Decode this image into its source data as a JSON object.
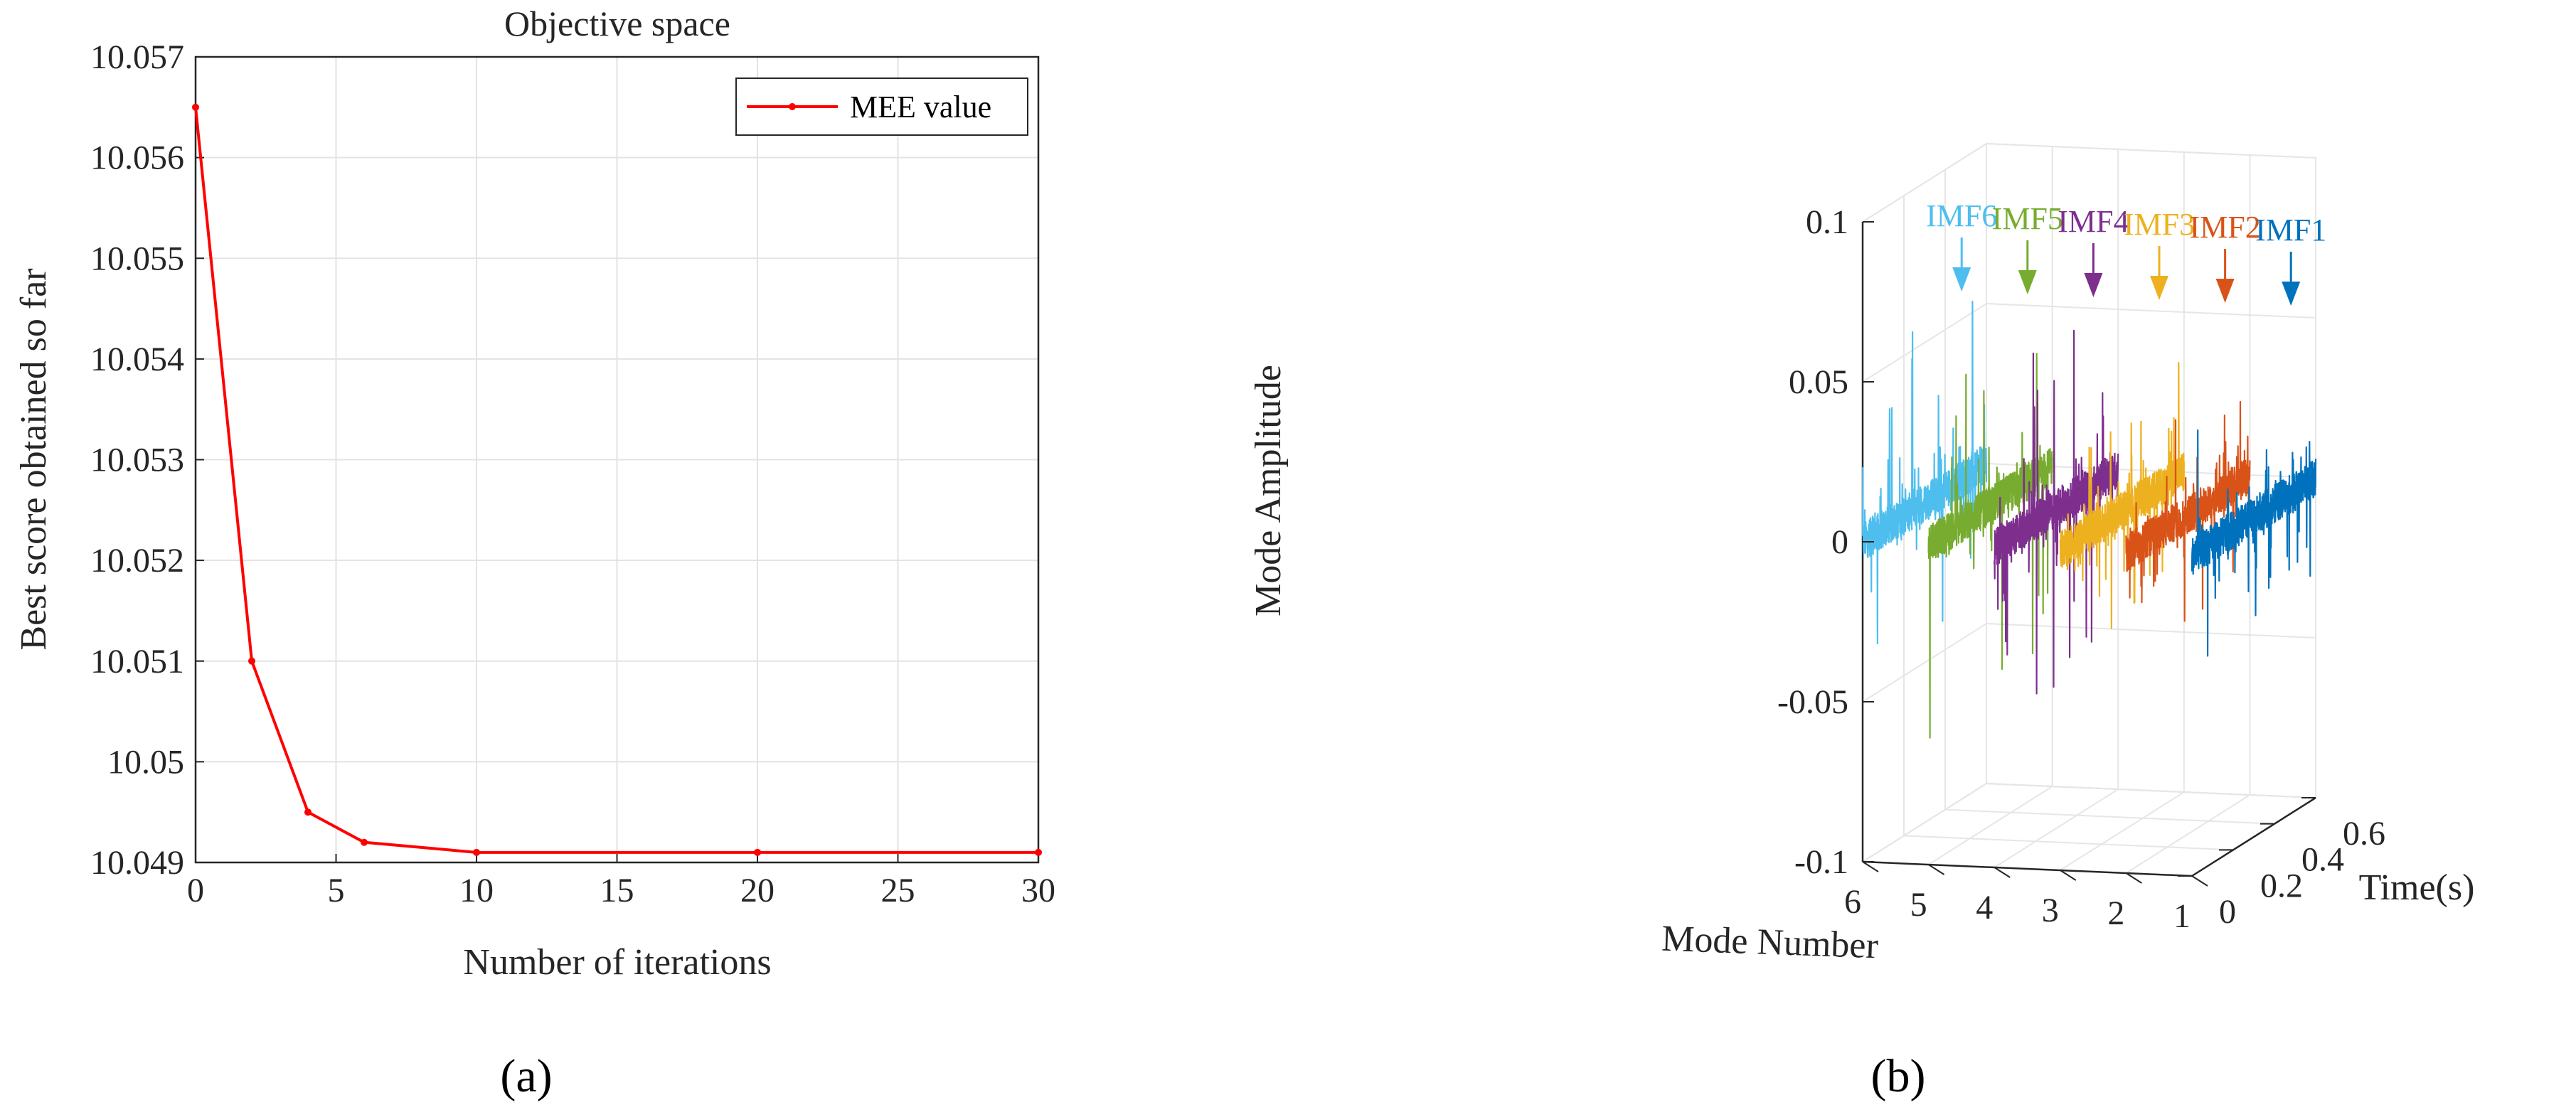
{
  "panel_a_label": "(a)",
  "panel_b_label": "(b)",
  "chart_data": [
    {
      "type": "line",
      "panel": "(a)",
      "title": "Objective space",
      "xlabel": "Number of iterations",
      "ylabel": "Best score obtained so far",
      "xlim": [
        0,
        30
      ],
      "ylim": [
        10.049,
        10.057
      ],
      "xticks": [
        0,
        5,
        10,
        15,
        20,
        25,
        30
      ],
      "yticks": [
        10.049,
        10.05,
        10.051,
        10.052,
        10.053,
        10.054,
        10.055,
        10.056,
        10.057
      ],
      "xtick_labels": [
        "0",
        "5",
        "10",
        "15",
        "20",
        "25",
        "30"
      ],
      "ytick_labels": [
        "10.049",
        "10.05",
        "10.051",
        "10.052",
        "10.053",
        "10.054",
        "10.055",
        "10.056",
        "10.057"
      ],
      "grid": true,
      "legend_position": "top-right",
      "series": [
        {
          "name": "MEE value",
          "color": "#ff0000",
          "x": [
            0,
            2,
            4,
            6,
            10,
            20,
            30
          ],
          "y": [
            10.0565,
            10.051,
            10.0495,
            10.0492,
            10.0491,
            10.0491,
            10.0491
          ]
        }
      ]
    },
    {
      "type": "line",
      "panel": "(b)",
      "projection": "3d",
      "xlabel": "Mode Number",
      "ylabel": "Time(s)",
      "zlabel": "Mode Amplitude",
      "xlim": [
        1,
        6
      ],
      "ylim": [
        0,
        0.6
      ],
      "zlim": [
        -0.1,
        0.1
      ],
      "xtick_labels": [
        "6",
        "5",
        "4",
        "3",
        "2",
        "1"
      ],
      "ytick_labels": [
        "0",
        "0.2",
        "0.4",
        "0.6"
      ],
      "ztick_labels": [
        "-0.1",
        "-0.05",
        "0",
        "0.05",
        "0.1"
      ],
      "grid": true,
      "series": [
        {
          "name": "IMF1",
          "mode": 1,
          "color": "#0072bd"
        },
        {
          "name": "IMF2",
          "mode": 2,
          "color": "#d95319"
        },
        {
          "name": "IMF3",
          "mode": 3,
          "color": "#edb120"
        },
        {
          "name": "IMF4",
          "mode": 4,
          "color": "#7e2f8e"
        },
        {
          "name": "IMF5",
          "mode": 5,
          "color": "#77ac30"
        },
        {
          "name": "IMF6",
          "mode": 6,
          "color": "#4dbeee"
        }
      ]
    }
  ]
}
